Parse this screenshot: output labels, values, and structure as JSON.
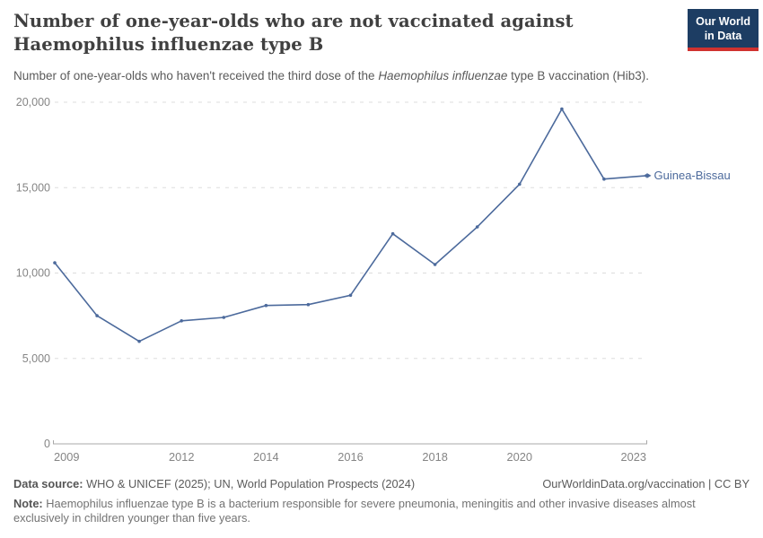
{
  "header": {
    "title_line1": "Number of one-year-olds who are not vaccinated against",
    "title_line2": "Haemophilus influenzae type B",
    "subtitle_pre": "Number of one-year-olds who haven't received the third dose of the ",
    "subtitle_italic": "Haemophilus influenzae",
    "subtitle_post": " type B vaccination (Hib3).",
    "logo": {
      "line1": "Our World",
      "line2": "in Data",
      "bg_color": "#1d3d63",
      "accent_color": "#d0322f"
    }
  },
  "chart_data": {
    "type": "line",
    "title": "Number of one-year-olds who are not vaccinated against Haemophilus influenzae type B",
    "xlabel": "",
    "ylabel": "",
    "xlim": [
      2009,
      2023
    ],
    "ylim": [
      0,
      20000
    ],
    "x_ticks": [
      2009,
      2012,
      2014,
      2016,
      2018,
      2020,
      2023
    ],
    "y_ticks": [
      0,
      5000,
      10000,
      15000,
      20000
    ],
    "grid": "horizontal-dashed",
    "legend_position": "end-of-line-label",
    "colors": {
      "line": "#4c6a9c",
      "tick_label": "#858585",
      "axis": "#a8a8a8",
      "gridline": "#dddddd"
    },
    "series": [
      {
        "name": "Guinea-Bissau",
        "color": "#4c6a9c",
        "x": [
          2009,
          2010,
          2011,
          2012,
          2013,
          2014,
          2015,
          2016,
          2017,
          2018,
          2019,
          2020,
          2021,
          2022,
          2023
        ],
        "values": [
          10600,
          7500,
          6000,
          7200,
          7400,
          8100,
          8150,
          8700,
          12300,
          10500,
          12700,
          15200,
          19600,
          15500,
          15700
        ]
      }
    ]
  },
  "footer": {
    "source_label": "Data source:",
    "source_text": " WHO & UNICEF (2025); UN, World Population Prospects (2024)",
    "credit": "OurWorldinData.org/vaccination | CC BY",
    "note_label": "Note:",
    "note_text": " Haemophilus influenzae type B is a bacterium responsible for severe pneumonia, meningitis and other invasive diseases almost exclusively in children younger than five years."
  }
}
